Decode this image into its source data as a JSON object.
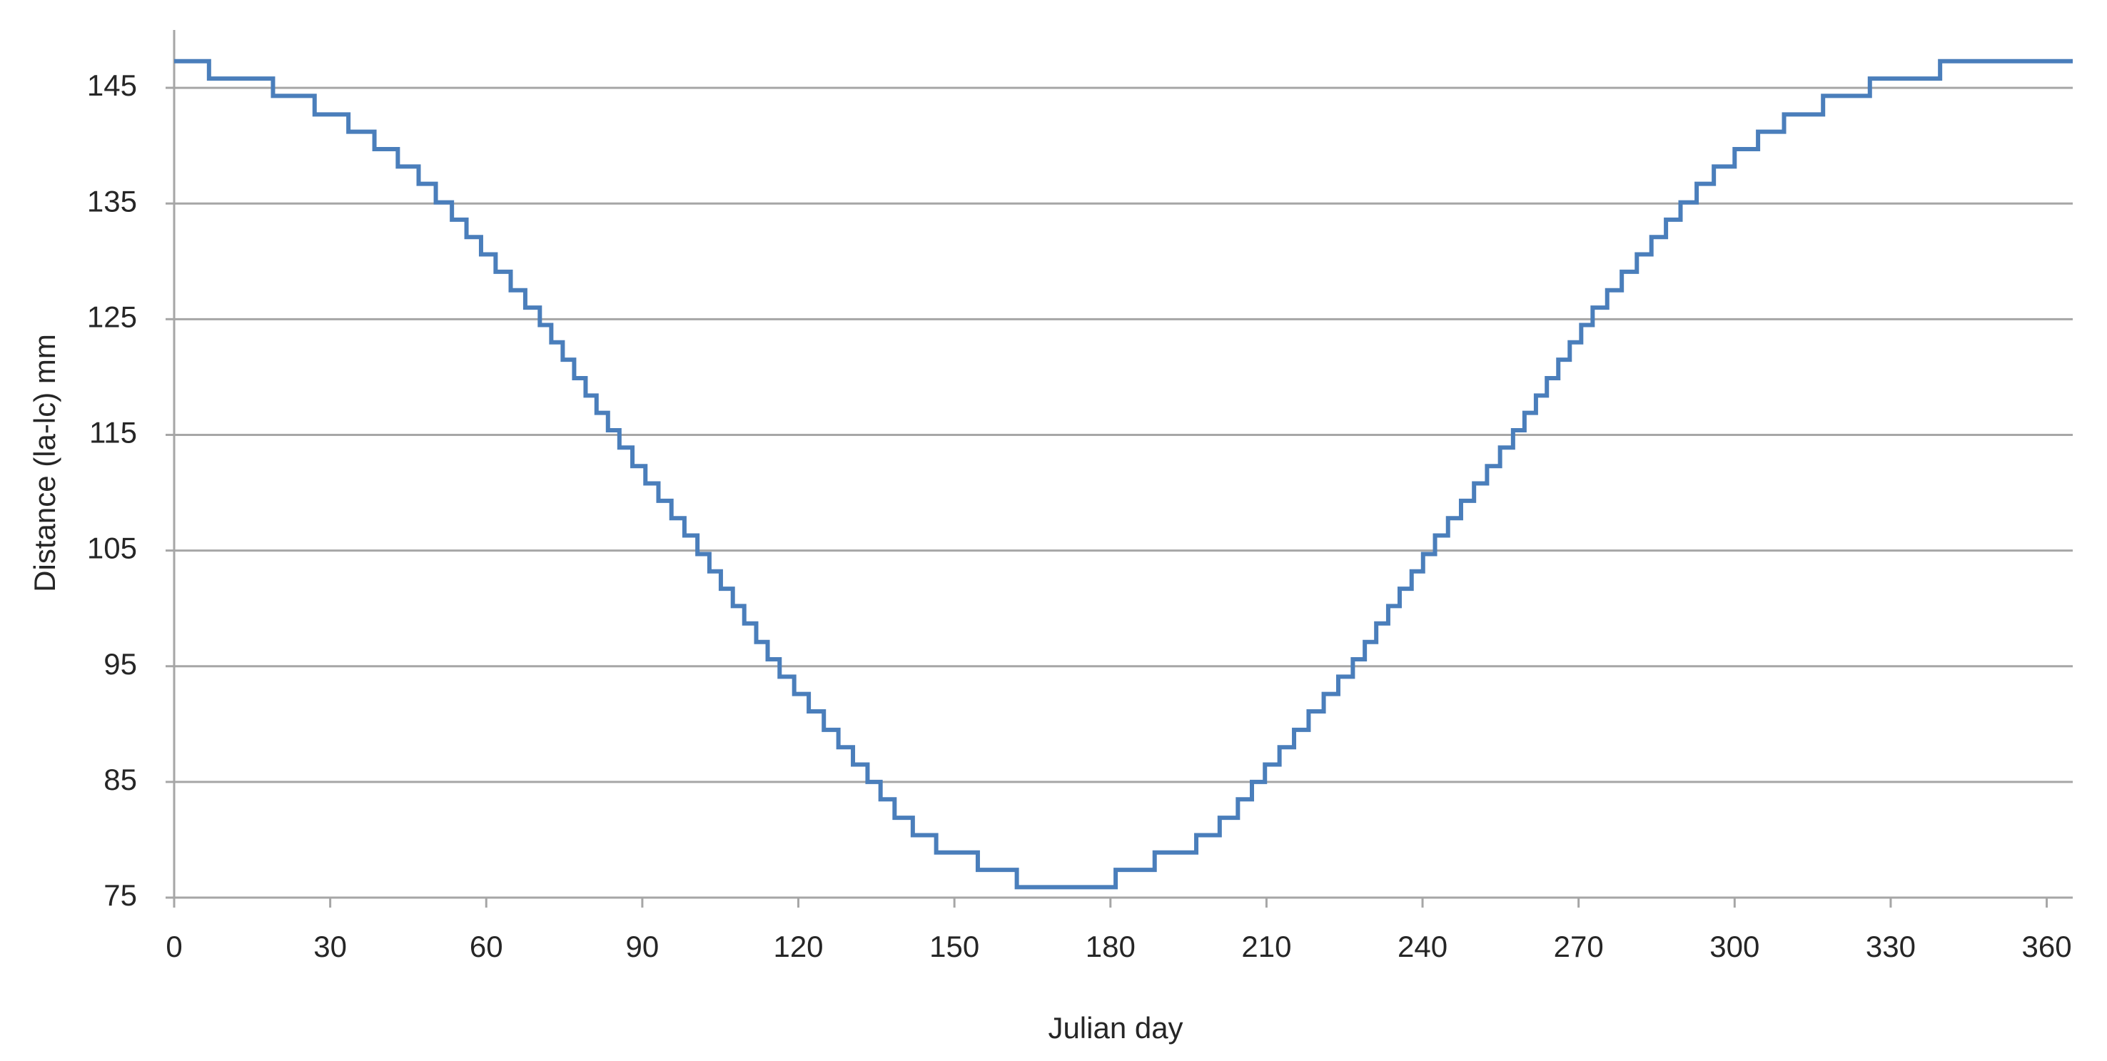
{
  "chart_data": {
    "type": "line",
    "x_label": "Julian day",
    "y_label": "Distance (la-lc) mm",
    "color": "#4a7ebb",
    "grid": true,
    "xlim": [
      0,
      365
    ],
    "xticks": [
      0,
      30,
      60,
      90,
      120,
      150,
      180,
      210,
      240,
      270,
      300,
      330,
      360
    ],
    "ylim": [
      75,
      150
    ],
    "yticks": [
      75,
      85,
      95,
      105,
      115,
      125,
      135,
      145
    ],
    "x": [
      0,
      6.7,
      6.7,
      19,
      19,
      27,
      27,
      33.5,
      33.5,
      38.5,
      38.5,
      43,
      43,
      47,
      47,
      50.3,
      50.3,
      53.4,
      53.4,
      56.2,
      56.2,
      59,
      59,
      61.8,
      61.8,
      64.7,
      64.7,
      67.5,
      67.5,
      70.3,
      70.3,
      72.5,
      72.5,
      74.7,
      74.7,
      76.9,
      76.9,
      79.1,
      79.1,
      81.2,
      81.2,
      83.4,
      83.4,
      85.6,
      85.6,
      88.1,
      88.1,
      90.6,
      90.6,
      93.1,
      93.1,
      95.6,
      95.6,
      98.1,
      98.1,
      100.6,
      100.6,
      102.9,
      102.9,
      105.1,
      105.1,
      107.4,
      107.4,
      109.6,
      109.6,
      111.9,
      111.9,
      114.1,
      114.1,
      116.4,
      116.4,
      119.2,
      119.2,
      122,
      122,
      124.9,
      124.9,
      127.7,
      127.7,
      130.5,
      130.5,
      133.3,
      133.3,
      135.8,
      135.8,
      138.5,
      138.5,
      142,
      142,
      146.5,
      146.5,
      154.5,
      154.5,
      162,
      162,
      181,
      181,
      188.5,
      188.5,
      196.5,
      196.5,
      201,
      201,
      204.5,
      204.5,
      207.2,
      207.2,
      209.7,
      209.7,
      212.5,
      212.5,
      215.3,
      215.3,
      218.1,
      218.1,
      221,
      221,
      223.8,
      223.8,
      226.6,
      226.6,
      228.9,
      228.9,
      231.1,
      231.1,
      233.4,
      233.4,
      235.6,
      235.6,
      237.9,
      237.9,
      240.1,
      240.1,
      242.4,
      242.4,
      244.9,
      244.9,
      247.4,
      247.4,
      249.9,
      249.9,
      252.4,
      252.4,
      254.9,
      254.9,
      257.4,
      257.4,
      259.6,
      259.6,
      261.8,
      261.8,
      263.9,
      263.9,
      266.1,
      266.1,
      268.3,
      268.3,
      270.5,
      270.5,
      272.7,
      272.7,
      275.5,
      275.5,
      278.3,
      278.3,
      281.2,
      281.2,
      284,
      284,
      286.8,
      286.8,
      289.6,
      289.6,
      292.7,
      292.7,
      296,
      296,
      300,
      300,
      304.5,
      304.5,
      309.5,
      309.5,
      317,
      317,
      326,
      326,
      339.5,
      339.5,
      365
    ],
    "values": [
      147.3,
      147.3,
      145.8,
      145.8,
      144.3,
      144.3,
      142.7,
      142.7,
      141.2,
      141.2,
      139.7,
      139.7,
      138.2,
      138.2,
      136.7,
      136.7,
      135.1,
      135.1,
      133.6,
      133.6,
      132.1,
      132.1,
      130.6,
      130.6,
      129.1,
      129.1,
      127.5,
      127.5,
      126.0,
      126.0,
      124.5,
      124.5,
      123.0,
      123.0,
      121.5,
      121.5,
      119.9,
      119.9,
      118.4,
      118.4,
      116.9,
      116.9,
      115.4,
      115.4,
      113.9,
      113.9,
      112.3,
      112.3,
      110.8,
      110.8,
      109.3,
      109.3,
      107.8,
      107.8,
      106.3,
      106.3,
      104.7,
      104.7,
      103.2,
      103.2,
      101.7,
      101.7,
      100.2,
      100.2,
      98.7,
      98.7,
      97.1,
      97.1,
      95.6,
      95.6,
      94.1,
      94.1,
      92.6,
      92.6,
      91.1,
      91.1,
      89.5,
      89.5,
      88.0,
      88.0,
      86.5,
      86.5,
      85.0,
      85.0,
      83.5,
      83.5,
      81.9,
      81.9,
      80.4,
      80.4,
      78.9,
      78.9,
      77.4,
      77.4,
      75.9,
      75.9,
      77.4,
      77.4,
      78.9,
      78.9,
      80.4,
      80.4,
      81.9,
      81.9,
      83.5,
      83.5,
      85.0,
      85.0,
      86.5,
      86.5,
      88.0,
      88.0,
      89.5,
      89.5,
      91.1,
      91.1,
      92.6,
      92.6,
      94.1,
      94.1,
      95.6,
      95.6,
      97.1,
      97.1,
      98.7,
      98.7,
      100.2,
      100.2,
      101.7,
      101.7,
      103.2,
      103.2,
      104.7,
      104.7,
      106.3,
      106.3,
      107.8,
      107.8,
      109.3,
      109.3,
      110.8,
      110.8,
      112.3,
      112.3,
      113.9,
      113.9,
      115.4,
      115.4,
      116.9,
      116.9,
      118.4,
      118.4,
      119.9,
      119.9,
      121.5,
      121.5,
      123.0,
      123.0,
      124.5,
      124.5,
      126.0,
      126.0,
      127.5,
      127.5,
      129.1,
      129.1,
      130.6,
      130.6,
      132.1,
      132.1,
      133.6,
      133.6,
      135.1,
      135.1,
      136.7,
      136.7,
      138.2,
      138.2,
      139.7,
      139.7,
      141.2,
      141.2,
      142.7,
      142.7,
      144.3,
      144.3,
      145.8,
      145.8,
      147.3,
      147.3
    ]
  }
}
